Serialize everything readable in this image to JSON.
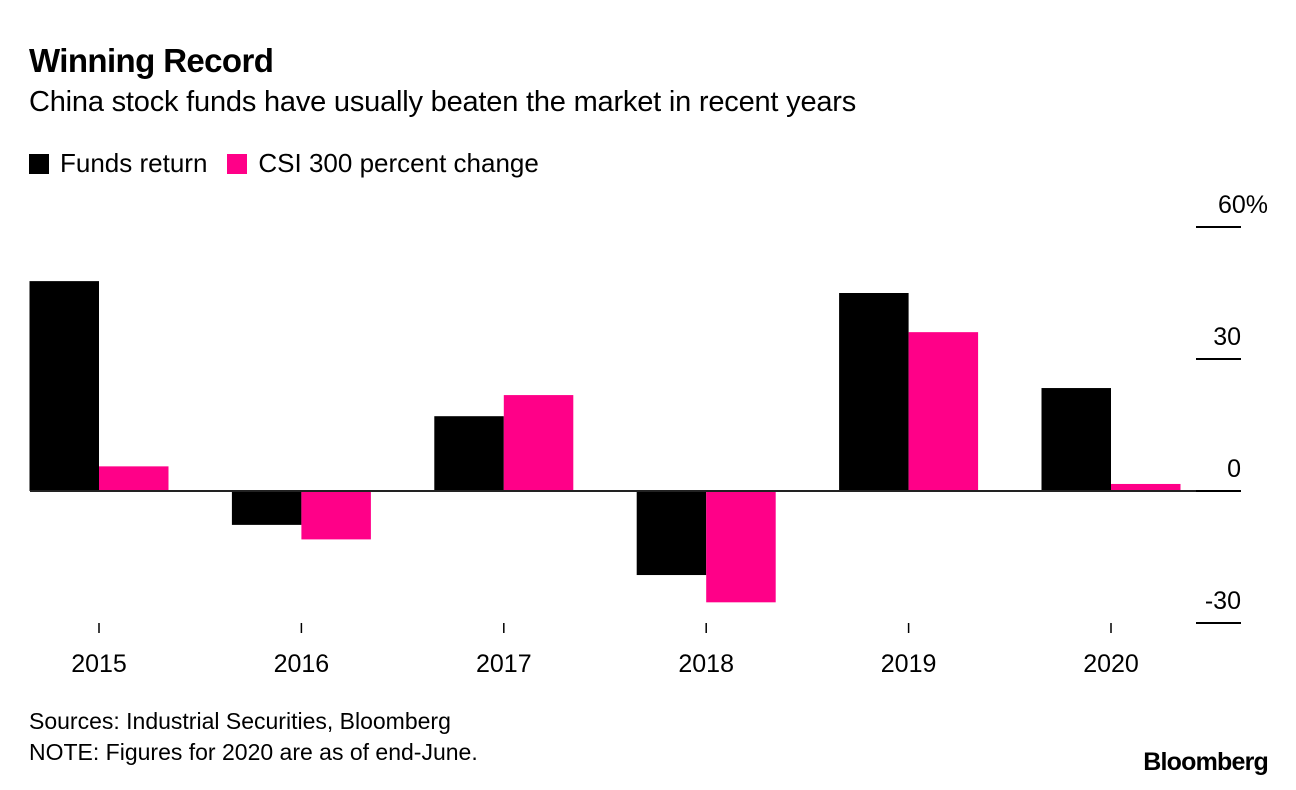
{
  "title": "Winning Record",
  "subtitle": "China stock funds have usually beaten the market in recent years",
  "legend": [
    {
      "label": "Funds return",
      "color": "#000000"
    },
    {
      "label": "CSI 300 percent change",
      "color": "#ff0088"
    }
  ],
  "footer": {
    "source": "Sources: Industrial Securities, Bloomberg",
    "note": "NOTE: Figures for 2020 are as of end-June."
  },
  "brand": "Bloomberg",
  "chart_data": {
    "type": "bar",
    "title": "Winning Record",
    "subtitle": "China stock funds have usually beaten the market in recent years",
    "xlabel": "",
    "ylabel": "",
    "categories": [
      "2015",
      "2016",
      "2017",
      "2018",
      "2019",
      "2020"
    ],
    "series": [
      {
        "name": "Funds return",
        "color": "#000000",
        "values": [
          47.7,
          -7.7,
          17.0,
          -19.1,
          45.0,
          23.4
        ]
      },
      {
        "name": "CSI 300 percent change",
        "color": "#ff0088",
        "values": [
          5.6,
          -11.0,
          21.8,
          -25.3,
          36.1,
          1.6
        ]
      }
    ],
    "ylim": [
      -30,
      60
    ],
    "yticks": [
      {
        "value": 60,
        "label": "60%"
      },
      {
        "value": 30,
        "label": "30"
      },
      {
        "value": 0,
        "label": "0"
      },
      {
        "value": -30,
        "label": "-30"
      }
    ],
    "y_axis_position": "right",
    "legend_position": "top-left",
    "grid": false
  }
}
